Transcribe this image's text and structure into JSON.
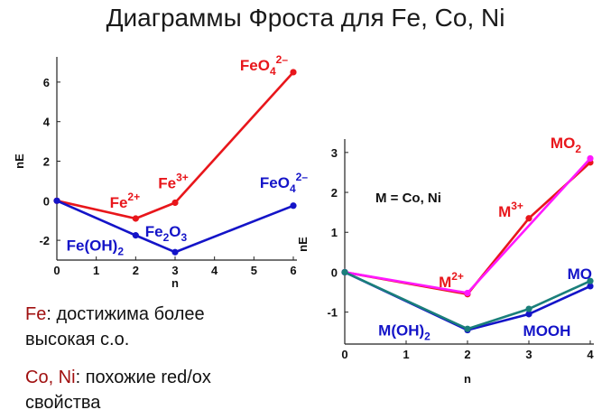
{
  "title": "Диаграммы Фроста для Fe, Co, Ni",
  "colors": {
    "red": "#e8161b",
    "blue": "#1414c8",
    "teal": "#1a7f7a",
    "magenta": "#ff18ff",
    "dark_red": "#a01010"
  },
  "notes": [
    {
      "element": "Fe",
      "text1": ": достижима более",
      "text2": "высокая с.о."
    },
    {
      "element": "Co, Ni",
      "text1": ": похожие red/ox",
      "text2": "свойства"
    }
  ],
  "chart_data": [
    {
      "type": "line",
      "xlabel": "n",
      "ylabel": "nE",
      "xlim": [
        0,
        6
      ],
      "ylim": [
        -3,
        7
      ],
      "x_ticks": [
        0,
        1,
        2,
        3,
        4,
        5,
        6
      ],
      "y_ticks": [
        -2,
        0,
        2,
        4,
        6
      ],
      "grid": false,
      "series": [
        {
          "color": "#e8161b",
          "points": [
            [
              0,
              0
            ],
            [
              2,
              -0.9
            ],
            [
              3,
              -0.1
            ],
            [
              6,
              6.5
            ]
          ]
        },
        {
          "color": "#1414c8",
          "points": [
            [
              0,
              0
            ],
            [
              2,
              -1.75
            ],
            [
              3,
              -2.6
            ],
            [
              6,
              -0.25
            ]
          ]
        }
      ],
      "annotations": [
        {
          "x": 6.0,
          "y": 6.5,
          "base": "FeO",
          "sub": "4",
          "sup": "2–",
          "color": "#e8161b",
          "anchor": "end",
          "dx": -6,
          "dy": -2
        },
        {
          "x": 2.0,
          "y": -0.9,
          "base": "Fe",
          "sub": "",
          "sup": "2+",
          "color": "#e8161b",
          "anchor": "middle",
          "dx": -12,
          "dy": -12
        },
        {
          "x": 3.0,
          "y": -0.1,
          "base": "Fe",
          "sub": "",
          "sup": "3+",
          "color": "#e8161b",
          "anchor": "middle",
          "dx": -2,
          "dy": -16
        },
        {
          "x": 6.0,
          "y": -0.25,
          "base": "FeO",
          "sub": "4",
          "sup": "2–",
          "color": "#1414c8",
          "anchor": "end",
          "dx": 16,
          "dy": -20
        },
        {
          "x": 2.0,
          "y": -1.75,
          "base": "Fe(OH)",
          "sub": "2",
          "sup": "",
          "color": "#1414c8",
          "anchor": "middle",
          "dx": -45,
          "dy": 17
        },
        {
          "x": 3.0,
          "y": -2.6,
          "base": "Fe",
          "sub": "2",
          "sup": "",
          "color": "#1414c8",
          "anchor": "middle",
          "dx": -10,
          "dy": -17,
          "base2": "O",
          "sub2": "3"
        }
      ]
    },
    {
      "type": "line",
      "xlabel": "n",
      "ylabel": "nE",
      "xlim": [
        0,
        4
      ],
      "ylim": [
        -1.8,
        3.2
      ],
      "x_ticks": [
        0,
        1,
        2,
        3,
        4
      ],
      "y_ticks": [
        -1,
        0,
        1,
        2,
        3
      ],
      "grid": false,
      "series": [
        {
          "color": "#e8161b",
          "points": [
            [
              0,
              0
            ],
            [
              2,
              -0.55
            ],
            [
              3,
              1.35
            ],
            [
              4,
              2.75
            ]
          ]
        },
        {
          "color": "#ff18ff",
          "points": [
            [
              0,
              0
            ],
            [
              2,
              -0.52
            ],
            [
              4,
              2.85
            ]
          ]
        },
        {
          "color": "#1414c8",
          "points": [
            [
              0,
              0
            ],
            [
              2,
              -1.45
            ],
            [
              3,
              -1.05
            ],
            [
              4,
              -0.35
            ]
          ]
        },
        {
          "color": "#1a7f7a",
          "points": [
            [
              0,
              0
            ],
            [
              2,
              -1.42
            ],
            [
              3,
              -0.92
            ],
            [
              4,
              -0.22
            ]
          ]
        }
      ],
      "annotations": [
        {
          "label": "M = Co, Ni",
          "color": "#111111",
          "x": 0.5,
          "y": 1.75,
          "anchor": "start",
          "dx": 0,
          "dy": 0,
          "small": true
        },
        {
          "x": 4.0,
          "y": 2.75,
          "base": "MO",
          "sub": "2",
          "sup": "",
          "color": "#e8161b",
          "anchor": "end",
          "dx": -10,
          "dy": -16
        },
        {
          "x": 3.0,
          "y": 1.35,
          "base": "M",
          "sub": "",
          "sup": "3+",
          "color": "#e8161b",
          "anchor": "middle",
          "dx": -20,
          "dy": -2
        },
        {
          "x": 2.0,
          "y": -0.55,
          "base": "M",
          "sub": "",
          "sup": "2+",
          "color": "#e8161b",
          "anchor": "middle",
          "dx": -18,
          "dy": -8
        },
        {
          "x": 4.0,
          "y": -0.22,
          "base": "MO",
          "sub": "",
          "sup": "",
          "color": "#1414c8",
          "anchor": "end",
          "dx": 2,
          "dy": -2
        },
        {
          "x": 3.0,
          "y": -1.05,
          "base": "MOOH",
          "sub": "",
          "sup": "",
          "color": "#1414c8",
          "anchor": "middle",
          "dx": 20,
          "dy": 24
        },
        {
          "x": 2.0,
          "y": -1.45,
          "base": "M(OH)",
          "sub": "2",
          "sup": "",
          "color": "#1414c8",
          "anchor": "middle",
          "dx": -70,
          "dy": 6
        }
      ]
    }
  ]
}
